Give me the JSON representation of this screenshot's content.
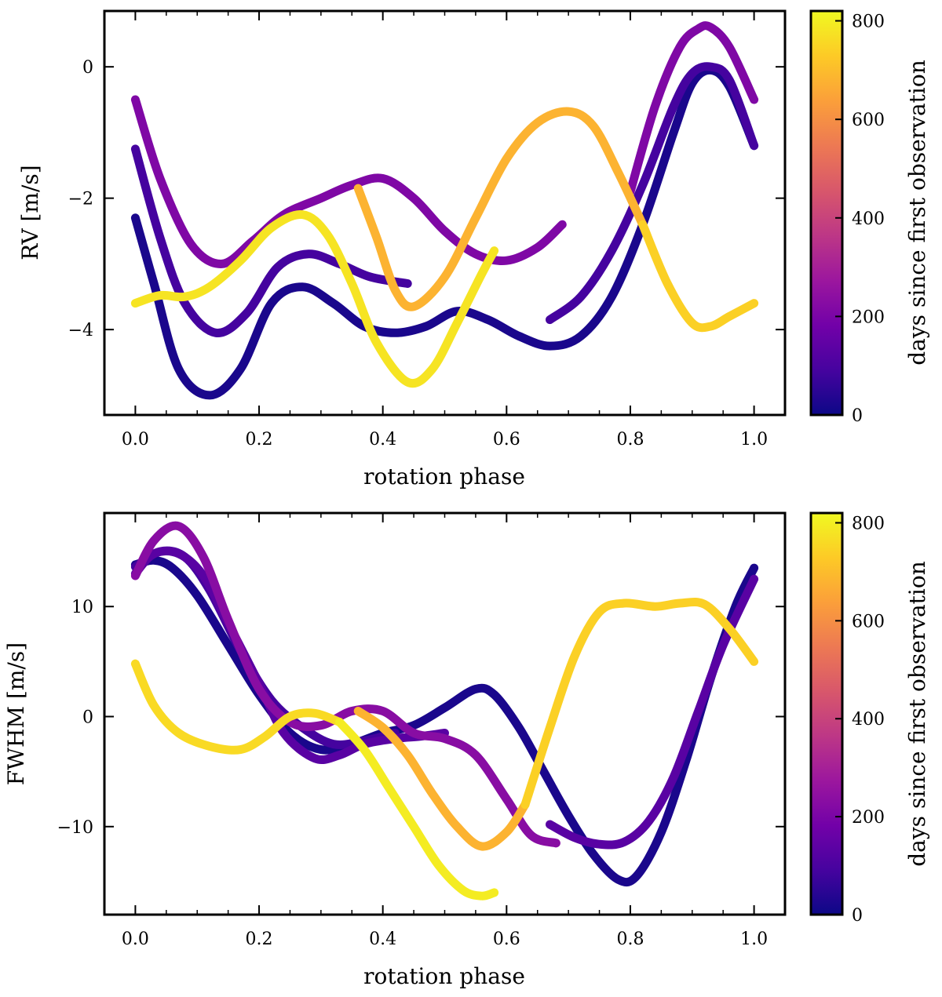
{
  "colors": {
    "colormap": [
      "#0d0887",
      "#46039f",
      "#7201a8",
      "#9c179e",
      "#bd3786",
      "#d8576b",
      "#ed7953",
      "#fb9f3a",
      "#fdca26",
      "#f0f921"
    ],
    "axes": "#000000"
  },
  "chart_data": [
    {
      "type": "line",
      "title": "",
      "xlabel": "rotation phase",
      "ylabel": "RV [m/s]",
      "xlim": [
        -0.05,
        1.05
      ],
      "ylim": [
        -5.3,
        0.85
      ],
      "x_ticks": [
        0.0,
        0.2,
        0.4,
        0.6,
        0.8,
        1.0
      ],
      "x_tick_labels": [
        "0.0",
        "0.2",
        "0.4",
        "0.6",
        "0.8",
        "1.0"
      ],
      "y_ticks": [
        -4,
        -2,
        0
      ],
      "y_tick_labels": [
        "−4",
        "−2",
        "0"
      ],
      "colorbar": {
        "label": "days since first observation",
        "range": [
          0,
          820
        ],
        "ticks": [
          0,
          200,
          400,
          600,
          800
        ],
        "tick_labels": [
          "0",
          "200",
          "400",
          "600",
          "800"
        ]
      },
      "series": [
        {
          "days": 20,
          "x": [
            0.0,
            0.03,
            0.07,
            0.12,
            0.17,
            0.22,
            0.27,
            0.32,
            0.37,
            0.42,
            0.47,
            0.52,
            0.57,
            0.62,
            0.67,
            0.72,
            0.77,
            0.82,
            0.87,
            0.9,
            0.93,
            0.96,
            1.0
          ],
          "y": [
            -2.3,
            -3.3,
            -4.6,
            -5.0,
            -4.6,
            -3.6,
            -3.35,
            -3.6,
            -3.95,
            -4.05,
            -3.95,
            -3.72,
            -3.85,
            -4.1,
            -4.25,
            -4.1,
            -3.5,
            -2.4,
            -1.0,
            -0.25,
            -0.05,
            -0.3,
            -1.2
          ]
        },
        {
          "days": 90,
          "x": [
            0.0,
            0.04,
            0.08,
            0.13,
            0.18,
            0.23,
            0.28,
            0.33,
            0.38,
            0.44
          ],
          "y": [
            -1.25,
            -2.6,
            -3.6,
            -4.05,
            -3.75,
            -3.05,
            -2.85,
            -3.0,
            -3.2,
            -3.3
          ]
        },
        {
          "days": 90,
          "x": [
            0.67,
            0.72,
            0.77,
            0.82,
            0.87,
            0.9,
            0.93,
            0.96,
            1.0
          ],
          "y": [
            -3.85,
            -3.5,
            -2.8,
            -1.8,
            -0.6,
            -0.1,
            0.0,
            -0.2,
            -1.2
          ]
        },
        {
          "days": 210,
          "x": [
            0.0,
            0.04,
            0.09,
            0.14,
            0.19,
            0.24,
            0.3,
            0.35,
            0.4,
            0.45,
            0.5,
            0.55,
            0.6,
            0.65,
            0.69
          ],
          "y": [
            -0.5,
            -1.7,
            -2.7,
            -3.0,
            -2.65,
            -2.25,
            -2.0,
            -1.8,
            -1.7,
            -2.0,
            -2.5,
            -2.85,
            -2.95,
            -2.75,
            -2.4
          ]
        },
        {
          "days": 210,
          "x": [
            0.8,
            0.84,
            0.88,
            0.91,
            0.93,
            0.96,
            1.0
          ],
          "y": [
            -1.9,
            -0.6,
            0.3,
            0.58,
            0.6,
            0.3,
            -0.5
          ]
        },
        {
          "days": 680,
          "x": [
            0.36,
            0.39,
            0.42,
            0.45,
            0.5,
            0.55,
            0.6,
            0.65,
            0.7,
            0.74,
            0.78,
            0.82
          ],
          "y": [
            -1.85,
            -2.6,
            -3.4,
            -3.65,
            -3.2,
            -2.3,
            -1.4,
            -0.85,
            -0.68,
            -0.9,
            -1.6,
            -2.4
          ]
        },
        {
          "days": 740,
          "x": [
            0.82,
            0.86,
            0.9,
            0.93,
            0.96,
            1.0
          ],
          "y": [
            -2.4,
            -3.3,
            -3.9,
            -3.95,
            -3.8,
            -3.6
          ]
        },
        {
          "days": 780,
          "x": [
            0.0,
            0.04,
            0.08,
            0.12,
            0.17,
            0.22,
            0.27,
            0.31,
            0.35,
            0.39,
            0.44,
            0.48,
            0.52,
            0.56,
            0.58
          ],
          "y": [
            -3.6,
            -3.48,
            -3.5,
            -3.35,
            -2.95,
            -2.45,
            -2.25,
            -2.55,
            -3.3,
            -4.2,
            -4.8,
            -4.6,
            -3.9,
            -3.15,
            -2.8
          ]
        }
      ]
    },
    {
      "type": "line",
      "title": "",
      "xlabel": "rotation phase",
      "ylabel": "FWHM [m/s]",
      "xlim": [
        -0.05,
        1.05
      ],
      "ylim": [
        -18.0,
        18.5
      ],
      "x_ticks": [
        0.0,
        0.2,
        0.4,
        0.6,
        0.8,
        1.0
      ],
      "x_tick_labels": [
        "0.0",
        "0.2",
        "0.4",
        "0.6",
        "0.8",
        "1.0"
      ],
      "y_ticks": [
        -10,
        0,
        10
      ],
      "y_tick_labels": [
        "−10",
        "0",
        "10"
      ],
      "colorbar": {
        "label": "days since first observation",
        "range": [
          0,
          820
        ],
        "ticks": [
          0,
          200,
          400,
          600,
          800
        ],
        "tick_labels": [
          "0",
          "200",
          "400",
          "600",
          "800"
        ]
      },
      "series": [
        {
          "days": 20,
          "x": [
            0.0,
            0.03,
            0.06,
            0.1,
            0.15,
            0.2,
            0.25,
            0.3,
            0.35,
            0.4,
            0.45,
            0.5,
            0.55,
            0.58,
            0.62,
            0.66,
            0.7,
            0.74,
            0.78,
            0.81,
            0.85,
            0.89,
            0.93,
            0.97,
            1.0
          ],
          "y": [
            13.8,
            14.2,
            13.5,
            11.0,
            6.5,
            2.0,
            -1.5,
            -3.0,
            -2.5,
            -1.5,
            -0.8,
            0.8,
            2.5,
            2.0,
            -1.0,
            -5.0,
            -9.0,
            -12.5,
            -14.8,
            -14.5,
            -10.5,
            -4.0,
            3.5,
            10.0,
            13.5
          ]
        },
        {
          "days": 90,
          "x": [
            0.0,
            0.04,
            0.08,
            0.12,
            0.17,
            0.22,
            0.27,
            0.32,
            0.37,
            0.42
          ],
          "y": [
            13.6,
            15.0,
            14.5,
            11.5,
            6.0,
            1.5,
            -1.0,
            -2.5,
            -2.2,
            -1.5
          ]
        },
        {
          "days": 130,
          "x": [
            0.0,
            0.03,
            0.07,
            0.11,
            0.15,
            0.2,
            0.24,
            0.29,
            0.33,
            0.37,
            0.42,
            0.46,
            0.5
          ],
          "y": [
            13.0,
            14.8,
            14.8,
            12.8,
            8.5,
            3.0,
            -1.5,
            -3.8,
            -3.5,
            -2.5,
            -2.0,
            -1.8,
            -1.5
          ]
        },
        {
          "days": 130,
          "x": [
            0.67,
            0.71,
            0.75,
            0.79,
            0.83,
            0.87,
            0.91,
            0.95,
            1.0
          ],
          "y": [
            -9.8,
            -11.0,
            -11.6,
            -11.4,
            -9.5,
            -5.5,
            0.5,
            6.5,
            12.5
          ]
        },
        {
          "days": 230,
          "x": [
            0.0,
            0.03,
            0.07,
            0.11,
            0.15,
            0.2,
            0.25,
            0.3,
            0.35,
            0.4,
            0.45,
            0.5,
            0.55,
            0.6,
            0.64,
            0.68
          ],
          "y": [
            12.8,
            16.0,
            17.3,
            14.5,
            8.8,
            2.5,
            -0.5,
            -0.8,
            0.5,
            0.5,
            -1.5,
            -2.0,
            -3.5,
            -7.5,
            -10.8,
            -11.5
          ]
        },
        {
          "days": 680,
          "x": [
            0.36,
            0.4,
            0.44,
            0.48,
            0.52,
            0.56,
            0.6,
            0.63
          ],
          "y": [
            0.5,
            -1.0,
            -3.5,
            -7.0,
            -10.0,
            -11.8,
            -10.5,
            -8.0
          ]
        },
        {
          "days": 740,
          "x": [
            0.63,
            0.67,
            0.71,
            0.75,
            0.79,
            0.84,
            0.88,
            0.92,
            0.96,
            1.0
          ],
          "y": [
            -8.0,
            -1.0,
            5.5,
            9.5,
            10.3,
            10.0,
            10.3,
            10.2,
            8.0,
            5.0
          ]
        },
        {
          "days": 760,
          "x": [
            0.0,
            0.03,
            0.07,
            0.12,
            0.17,
            0.21,
            0.25,
            0.29,
            0.33
          ],
          "y": [
            4.8,
            1.0,
            -1.5,
            -2.7,
            -3.0,
            -1.8,
            0.0,
            0.3,
            -0.5
          ]
        },
        {
          "days": 795,
          "x": [
            0.33,
            0.37,
            0.41,
            0.45,
            0.49,
            0.53,
            0.56,
            0.58
          ],
          "y": [
            -0.5,
            -3.0,
            -6.5,
            -10.0,
            -13.5,
            -15.8,
            -16.3,
            -16.0
          ]
        }
      ]
    }
  ]
}
